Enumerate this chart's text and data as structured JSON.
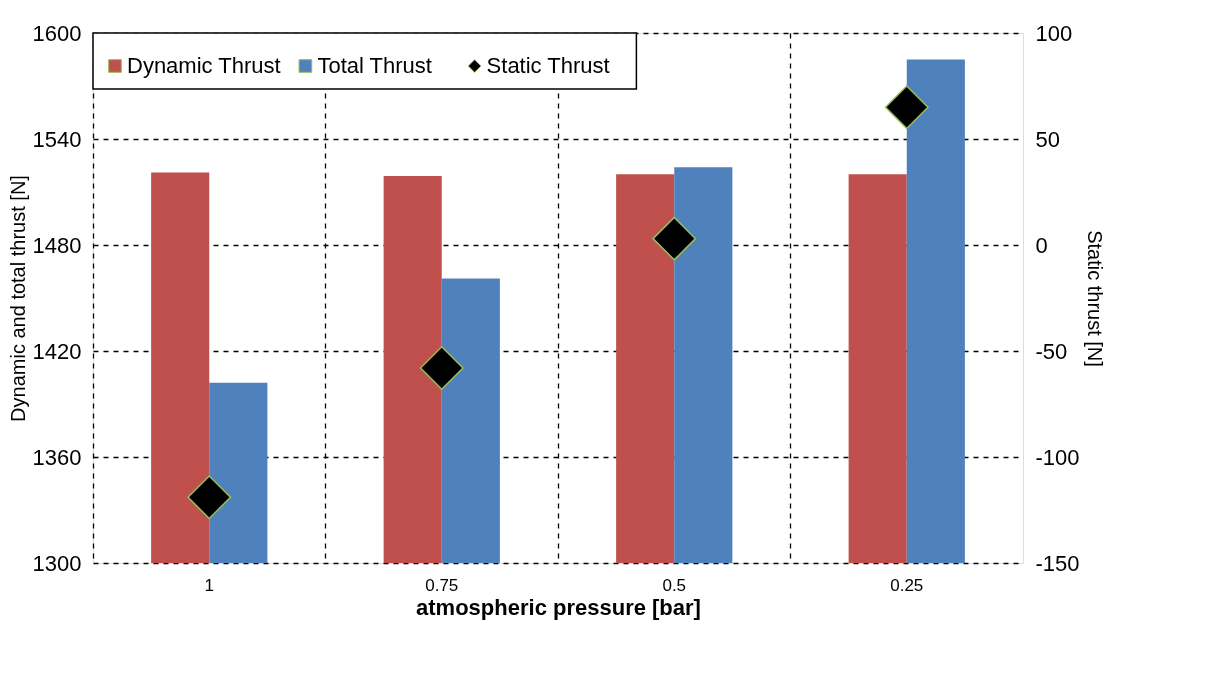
{
  "chart_data": {
    "type": "bar",
    "xlabel": "atmospheric pressure [bar]",
    "ylabel": "Dynamic and total thrust [N]",
    "y2label": "Static thrust [N]",
    "categories": [
      "1",
      "0.75",
      "0.5",
      "0.25"
    ],
    "series": [
      {
        "name": "Dynamic Thrust",
        "color": "#c0504d",
        "values": [
          1521,
          1519,
          1520,
          1520
        ]
      },
      {
        "name": "Total Thrust",
        "color": "#4f81bd",
        "values": [
          1402,
          1461,
          1524,
          1585
        ]
      },
      {
        "name": "Static Thrust",
        "type": "scatter",
        "axis": "y2",
        "marker": "diamond",
        "color": "#000000",
        "values": [
          -119,
          -58,
          3,
          65
        ]
      }
    ],
    "ylim": [
      1300,
      1600
    ],
    "yticks": [
      1300,
      1360,
      1420,
      1480,
      1540,
      1600
    ],
    "y2lim": [
      -150,
      100
    ],
    "y2ticks": [
      -150,
      -100,
      -50,
      0,
      50,
      100
    ],
    "grid": true,
    "legend": "top left"
  }
}
